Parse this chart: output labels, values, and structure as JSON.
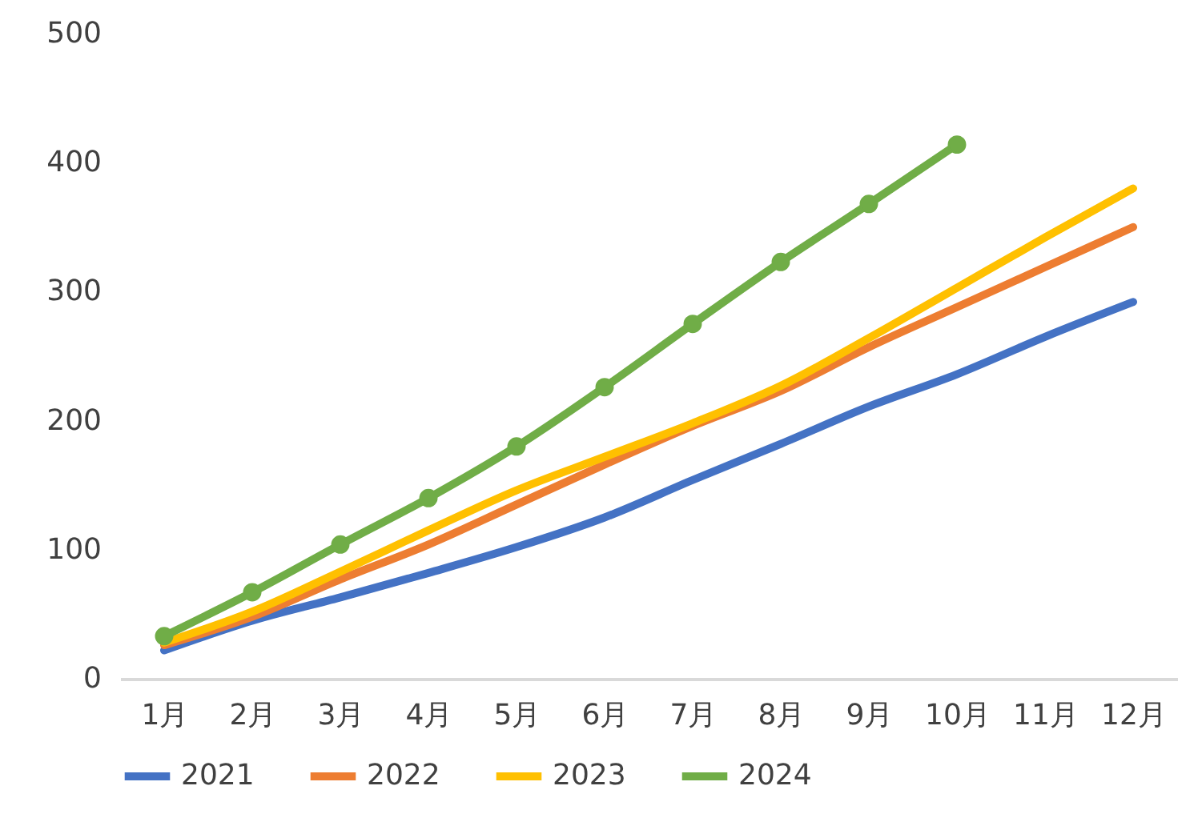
{
  "chart_data": {
    "type": "line",
    "categories": [
      "1月",
      "2月",
      "3月",
      "4月",
      "5月",
      "6月",
      "7月",
      "8月",
      "9月",
      "10月",
      "11月",
      "12月"
    ],
    "ylim": [
      0,
      500
    ],
    "yticks": [
      0,
      100,
      200,
      300,
      400,
      500
    ],
    "grid": false,
    "legend": "bottom",
    "marker": "none",
    "series": [
      {
        "name": "2021",
        "color": "#4472c4",
        "values": [
          22,
          45,
          63,
          82,
          102,
          125,
          154,
          182,
          211,
          236,
          265,
          292
        ]
      },
      {
        "name": "2022",
        "color": "#ed7d31",
        "values": [
          26,
          48,
          77,
          104,
          135,
          166,
          196,
          223,
          257,
          288,
          319,
          350
        ]
      },
      {
        "name": "2023",
        "color": "#ffc000",
        "values": [
          28,
          52,
          83,
          115,
          146,
          172,
          198,
          227,
          264,
          303,
          342,
          380
        ]
      },
      {
        "name": "2024",
        "color": "#70ad47",
        "marker": "circle",
        "values": [
          33,
          67,
          104,
          140,
          180,
          226,
          275,
          323,
          368,
          414,
          null,
          null
        ]
      }
    ]
  }
}
